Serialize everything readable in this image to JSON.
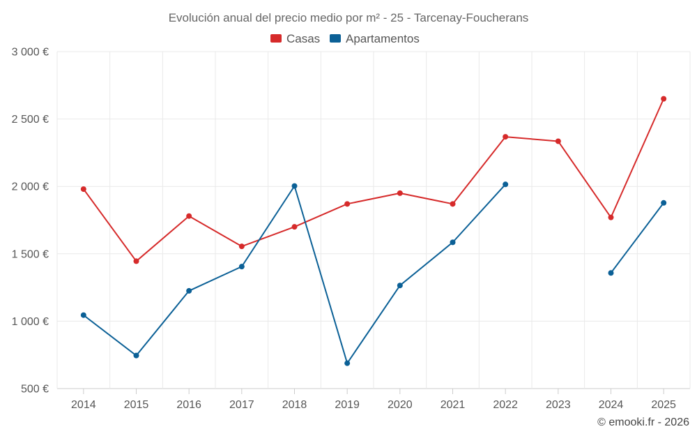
{
  "chart_data": {
    "type": "line",
    "title": "Evolución anual del precio medio por m² - 25 - Tarcenay-Foucherans",
    "categories": [
      "2014",
      "2015",
      "2016",
      "2017",
      "2018",
      "2019",
      "2020",
      "2021",
      "2022",
      "2023",
      "2024",
      "2025"
    ],
    "ylim": [
      500,
      3000
    ],
    "yticks": [
      500,
      1000,
      1500,
      2000,
      2500,
      3000
    ],
    "ytick_labels": [
      "500 €",
      "1 000 €",
      "1 500 €",
      "2 000 €",
      "2 500 €",
      "3 000 €"
    ],
    "grid": true,
    "legend_position": "top-center",
    "series": [
      {
        "name": "Casas",
        "color": "#d62a2a",
        "values": [
          1980,
          1445,
          1780,
          1555,
          1700,
          1870,
          1950,
          1870,
          2368,
          2335,
          1770,
          2650
        ]
      },
      {
        "name": "Apartamentos",
        "color": "#0b6096",
        "values": [
          1045,
          745,
          1225,
          1405,
          2003,
          688,
          1265,
          1585,
          2015,
          null,
          1358,
          1878
        ]
      }
    ],
    "credit": "© emooki.fr - 2026"
  }
}
